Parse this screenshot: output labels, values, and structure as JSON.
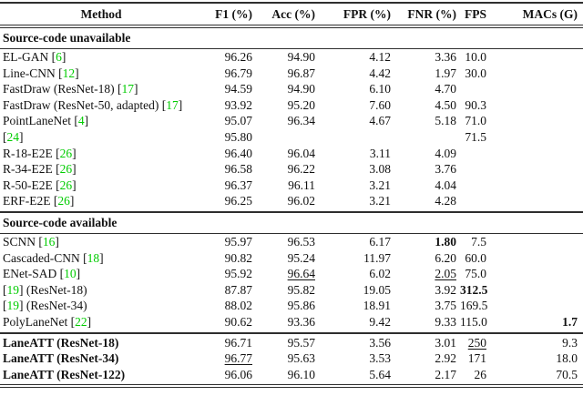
{
  "table": {
    "citation_color": "#00cc00",
    "columns": [
      {
        "key": "method",
        "label": "Method"
      },
      {
        "key": "f1",
        "label": "F1 (%)"
      },
      {
        "key": "acc",
        "label": "Acc (%)"
      },
      {
        "key": "fpr",
        "label": "FPR (%)"
      },
      {
        "key": "fnr",
        "label": "FNR (%)"
      },
      {
        "key": "fps",
        "label": "FPS"
      },
      {
        "key": "macs",
        "label": "MACs (G)"
      }
    ],
    "sections": [
      {
        "header": "Source-code unavailable",
        "rows": [
          {
            "method": [
              {
                "t": "EL-GAN "
              },
              {
                "c": "6"
              }
            ],
            "values": [
              "96.26",
              "94.90",
              "4.12",
              "3.36",
              "10.0",
              ""
            ]
          },
          {
            "method": [
              {
                "t": "Line-CNN "
              },
              {
                "c": "12"
              }
            ],
            "values": [
              "96.79",
              "96.87",
              "4.42",
              "1.97",
              "30.0",
              ""
            ]
          },
          {
            "method": [
              {
                "t": "FastDraw (ResNet-18) "
              },
              {
                "c": "17"
              }
            ],
            "values": [
              "94.59",
              "94.90",
              "6.10",
              "4.70",
              "",
              ""
            ]
          },
          {
            "method": [
              {
                "t": "FastDraw (ResNet-50, adapted) "
              },
              {
                "c": "17"
              }
            ],
            "values": [
              "93.92",
              "95.20",
              "7.60",
              "4.50",
              "90.3",
              ""
            ]
          },
          {
            "method": [
              {
                "t": "PointLaneNet "
              },
              {
                "c": "4"
              }
            ],
            "values": [
              "95.07",
              "96.34",
              "4.67",
              "5.18",
              "71.0",
              ""
            ]
          },
          {
            "method": [
              {
                "c": "24"
              }
            ],
            "values": [
              "95.80",
              "",
              "",
              "",
              "71.5",
              ""
            ]
          },
          {
            "method": [
              {
                "t": "R-18-E2E "
              },
              {
                "c": "26"
              }
            ],
            "values": [
              "96.40",
              "96.04",
              "3.11",
              "4.09",
              "",
              ""
            ]
          },
          {
            "method": [
              {
                "t": "R-34-E2E "
              },
              {
                "c": "26"
              }
            ],
            "values": [
              "96.58",
              "96.22",
              "3.08",
              "3.76",
              "",
              ""
            ]
          },
          {
            "method": [
              {
                "t": "R-50-E2E "
              },
              {
                "c": "26"
              }
            ],
            "values": [
              "96.37",
              "96.11",
              "3.21",
              "4.04",
              "",
              ""
            ]
          },
          {
            "method": [
              {
                "t": "ERF-E2E "
              },
              {
                "c": "26"
              }
            ],
            "values": [
              "96.25",
              "96.02",
              "3.21",
              "4.28",
              "",
              ""
            ]
          }
        ]
      },
      {
        "header": "Source-code available",
        "rows": [
          {
            "method": [
              {
                "t": "SCNN "
              },
              {
                "c": "16"
              }
            ],
            "values": [
              "95.97",
              "96.53",
              "6.17",
              {
                "v": "1.80",
                "b": true
              },
              "7.5",
              ""
            ]
          },
          {
            "method": [
              {
                "t": "Cascaded-CNN "
              },
              {
                "c": "18"
              }
            ],
            "values": [
              "90.82",
              "95.24",
              "11.97",
              "6.20",
              "60.0",
              ""
            ]
          },
          {
            "method": [
              {
                "t": "ENet-SAD "
              },
              {
                "c": "10"
              }
            ],
            "values": [
              "95.92",
              {
                "v": "96.64",
                "u": true
              },
              "6.02",
              {
                "v": "2.05",
                "u": true
              },
              "75.0",
              ""
            ]
          },
          {
            "method": [
              {
                "c": "19"
              },
              {
                "t": " (ResNet-18)"
              }
            ],
            "values": [
              "87.87",
              "95.82",
              "19.05",
              "3.92",
              {
                "v": "312.5",
                "b": true
              },
              ""
            ]
          },
          {
            "method": [
              {
                "c": "19"
              },
              {
                "t": " (ResNet-34)"
              }
            ],
            "values": [
              "88.02",
              "95.86",
              "18.91",
              "3.75",
              "169.5",
              ""
            ]
          },
          {
            "method": [
              {
                "t": "PolyLaneNet "
              },
              {
                "c": "22"
              }
            ],
            "values": [
              "90.62",
              "93.36",
              "9.42",
              "9.33",
              "115.0",
              {
                "v": "1.7",
                "b": true
              }
            ]
          }
        ]
      },
      {
        "header": null,
        "rows": [
          {
            "bold": true,
            "method": [
              {
                "t": "LaneATT (ResNet-18)"
              }
            ],
            "values": [
              "96.71",
              "95.57",
              "3.56",
              "3.01",
              {
                "v": "250",
                "u": true
              },
              "9.3"
            ]
          },
          {
            "bold": true,
            "method": [
              {
                "t": "LaneATT (ResNet-34)"
              }
            ],
            "values": [
              {
                "v": "96.77",
                "u": true
              },
              "95.63",
              "3.53",
              "2.92",
              "171",
              "18.0"
            ]
          },
          {
            "bold": true,
            "method": [
              {
                "t": "LaneATT (ResNet-122)"
              }
            ],
            "values": [
              "96.06",
              "96.10",
              "5.64",
              "2.17",
              "26",
              "70.5"
            ]
          }
        ]
      }
    ]
  }
}
